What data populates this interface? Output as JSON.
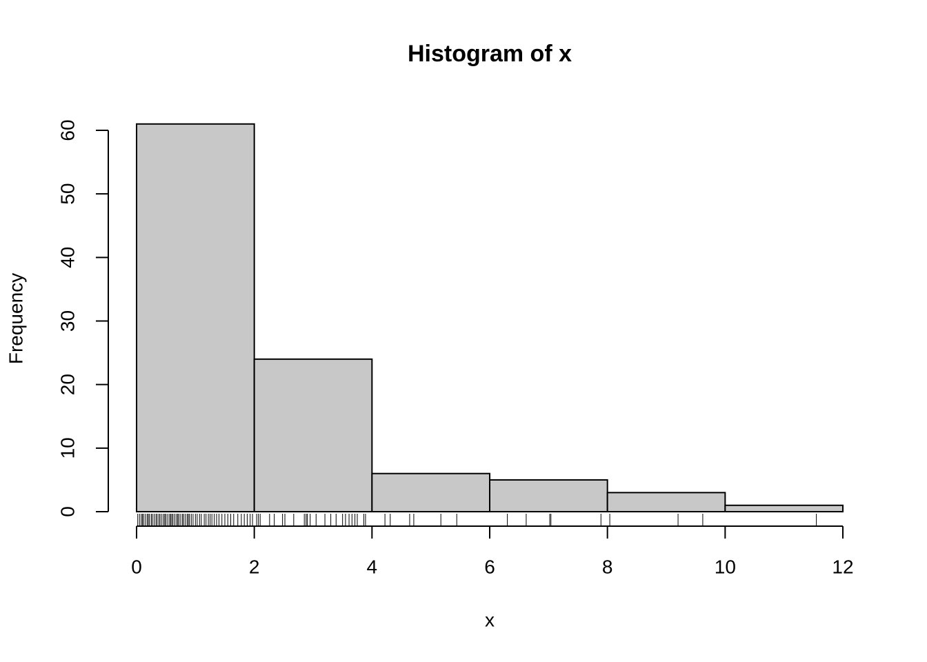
{
  "chart_data": {
    "type": "histogram",
    "title": "Histogram of x",
    "x_label": "x",
    "y_label": "Frequency",
    "bins": [
      0,
      2,
      4,
      6,
      8,
      10,
      12
    ],
    "counts": [
      61,
      24,
      6,
      5,
      3,
      1
    ],
    "color": "#c8c8c8",
    "xlim": [
      0,
      12
    ],
    "xticks": [
      0,
      2,
      4,
      6,
      8,
      10,
      12
    ],
    "ylim": [
      0,
      60
    ],
    "yticks": [
      0,
      10,
      20,
      30,
      40,
      50,
      60
    ],
    "grid": false,
    "rug": [
      0.02,
      0.05,
      0.08,
      0.1,
      0.12,
      0.15,
      0.18,
      0.2,
      0.22,
      0.25,
      0.27,
      0.3,
      0.33,
      0.35,
      0.38,
      0.4,
      0.43,
      0.46,
      0.48,
      0.5,
      0.53,
      0.56,
      0.58,
      0.6,
      0.62,
      0.65,
      0.68,
      0.7,
      0.72,
      0.75,
      0.78,
      0.8,
      0.83,
      0.86,
      0.88,
      0.9,
      0.93,
      0.96,
      1.0,
      1.03,
      1.07,
      1.1,
      1.15,
      1.18,
      1.22,
      1.25,
      1.28,
      1.32,
      1.36,
      1.4,
      1.45,
      1.5,
      1.55,
      1.6,
      1.65,
      1.72,
      1.78,
      1.83,
      1.88,
      1.93,
      1.97,
      2.04,
      2.07,
      2.1,
      2.26,
      2.34,
      2.48,
      2.52,
      2.67,
      2.85,
      2.88,
      2.9,
      2.95,
      3.05,
      3.2,
      3.3,
      3.39,
      3.5,
      3.55,
      3.61,
      3.66,
      3.71,
      3.75,
      3.86,
      3.89,
      4.22,
      4.31,
      4.64,
      4.71,
      5.17,
      5.44,
      6.3,
      6.62,
      7.02,
      7.04,
      7.89,
      8.04,
      9.2,
      9.62,
      11.55
    ]
  }
}
